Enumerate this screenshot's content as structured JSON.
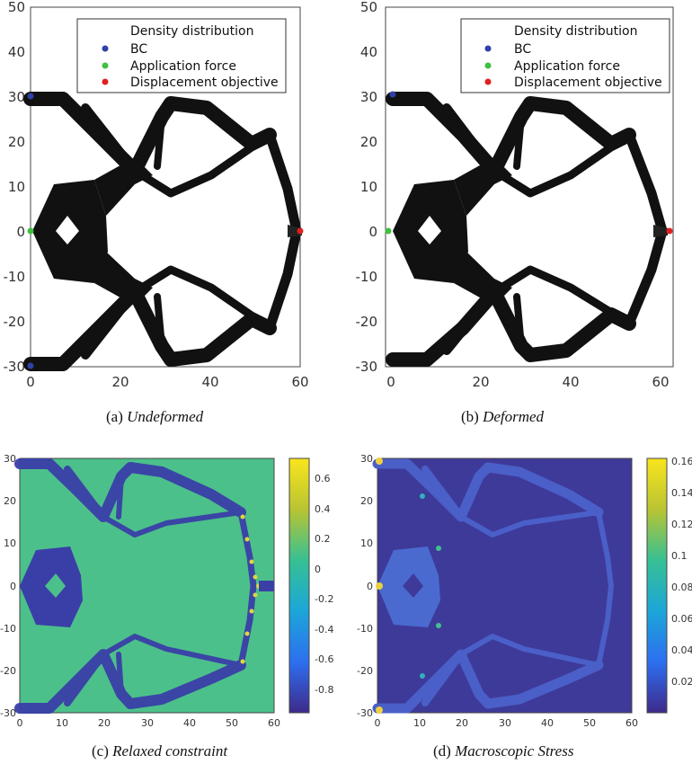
{
  "figure": {
    "panels": [
      {
        "id": "a",
        "caption_label": "(a) ",
        "caption_title": "Undeformed",
        "legend": {
          "title": "Density distribution",
          "entries": [
            {
              "label": "BC",
              "color": "#3040a8"
            },
            {
              "label": "Application force",
              "color": "#40c040"
            },
            {
              "label": "Displacement objective",
              "color": "#e02020"
            }
          ]
        },
        "x_ticks": [
          "0",
          "20",
          "40",
          "60"
        ],
        "y_ticks": [
          "50",
          "40",
          "30",
          "20",
          "10",
          "0",
          "-10",
          "-20",
          "-30"
        ]
      },
      {
        "id": "b",
        "caption_label": "(b) ",
        "caption_title": "Deformed",
        "legend": {
          "title": "Density distribution",
          "entries": [
            {
              "label": "BC",
              "color": "#3040a8"
            },
            {
              "label": "Application force",
              "color": "#40c040"
            },
            {
              "label": "Displacement objective",
              "color": "#e02020"
            }
          ]
        },
        "x_ticks": [
          "0",
          "20",
          "40",
          "60"
        ],
        "y_ticks": [
          "50",
          "40",
          "30",
          "20",
          "10",
          "0",
          "-10",
          "-20",
          "-30"
        ]
      },
      {
        "id": "c",
        "caption_label": "(c) ",
        "caption_title": "Relaxed constraint",
        "x_ticks": [
          "0",
          "10",
          "20",
          "30",
          "40",
          "50",
          "60"
        ],
        "y_ticks": [
          "30",
          "20",
          "10",
          "0",
          "-10",
          "-20",
          "-30"
        ],
        "colorbar_ticks": [
          "0.6",
          "0.4",
          "0.2",
          "0",
          "-0.2",
          "-0.4",
          "-0.6",
          "-0.8"
        ],
        "background_color": "#4cc08a",
        "structure_color": "#3a3fa8"
      },
      {
        "id": "d",
        "caption_label": "(d) ",
        "caption_title": "Macroscopic Stress",
        "x_ticks": [
          "0",
          "10",
          "20",
          "30",
          "40",
          "50",
          "60"
        ],
        "y_ticks": [
          "30",
          "20",
          "10",
          "0",
          "-10",
          "-20",
          "-30"
        ],
        "colorbar_ticks": [
          "0.16",
          "0.14",
          "0.12",
          "0.1",
          "0.08",
          "0.06",
          "0.04",
          "0.02"
        ],
        "background_color": "#3e3a99",
        "structure_color": "#4a5fc8"
      }
    ]
  }
}
